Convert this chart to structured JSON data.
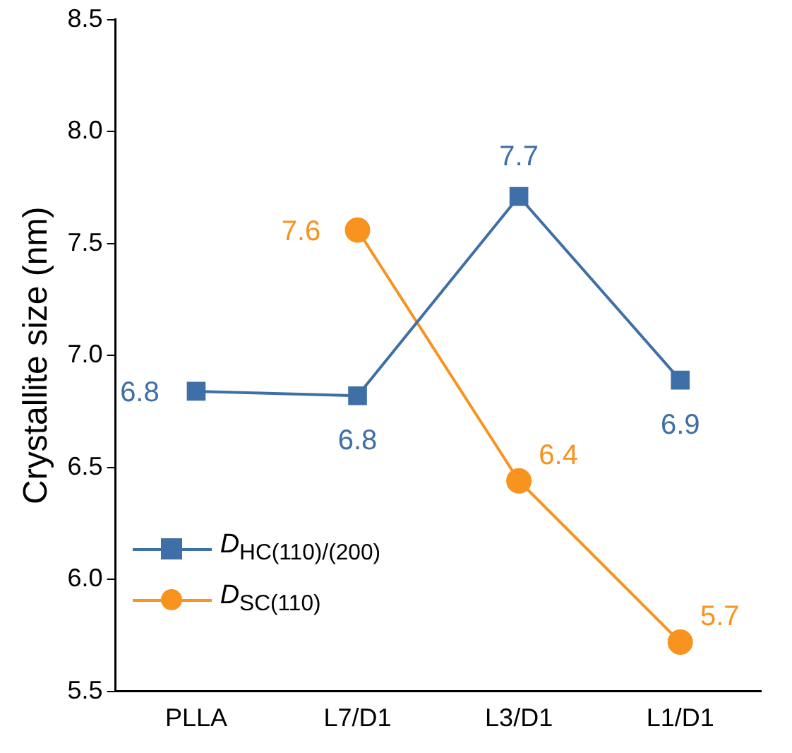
{
  "chart_data": {
    "type": "line",
    "ylabel": "Crystallite size (nm)",
    "categories": [
      "PLLA",
      "L7/D1",
      "L3/D1",
      "L1/D1"
    ],
    "series": [
      {
        "name": "D$_{HC(110)/(200)}$",
        "color": "#3e6fa6",
        "marker": "square",
        "values": [
          6.84,
          6.82,
          7.71,
          6.89
        ],
        "value_labels": [
          "6.8",
          "6.8",
          "7.7",
          "6.9"
        ]
      },
      {
        "name": "D$_{SC(110)}$",
        "color": "#f7931e",
        "marker": "circle",
        "values": [
          null,
          7.56,
          6.44,
          5.72
        ],
        "value_labels": [
          null,
          "7.6",
          "6.4",
          "5.7"
        ]
      }
    ],
    "ylim": [
      5.5,
      8.5
    ],
    "yticks": [
      5.5,
      {
        "value": 6,
        "label": "6.0"
      },
      6.5,
      {
        "value": 7,
        "label": "7.0"
      },
      7.5,
      {
        "value": 8,
        "label": "8.0"
      },
      8.5
    ],
    "grid": false,
    "legend": "bottom left"
  }
}
